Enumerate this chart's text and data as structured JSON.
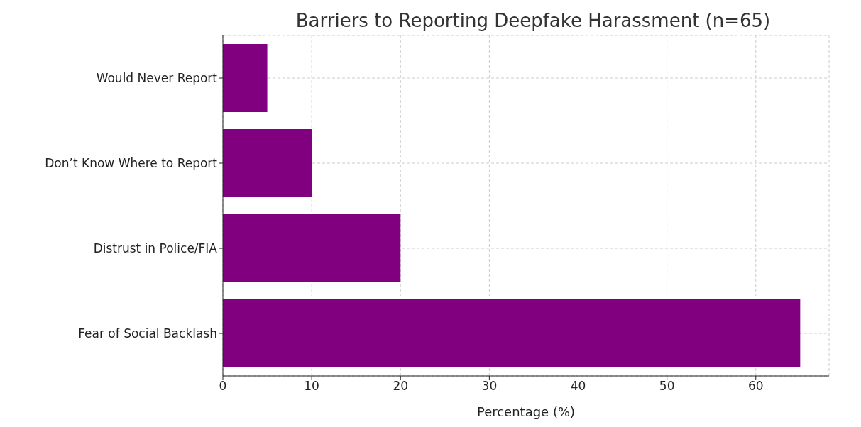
{
  "chart_data": {
    "type": "bar",
    "orientation": "horizontal",
    "title": "Barriers to Reporting Deepfake Harassment (n=65)",
    "xlabel": "Percentage (%)",
    "categories": [
      "Would Never Report",
      "Don’t Know Where to Report",
      "Distrust in Police/FIA",
      "Fear of Social Backlash"
    ],
    "values": [
      5,
      10,
      20,
      65
    ],
    "color": "#800080",
    "xlim": [
      0,
      68.25
    ],
    "xticks": [
      0,
      10,
      20,
      30,
      40,
      50,
      60
    ],
    "grid": true
  }
}
